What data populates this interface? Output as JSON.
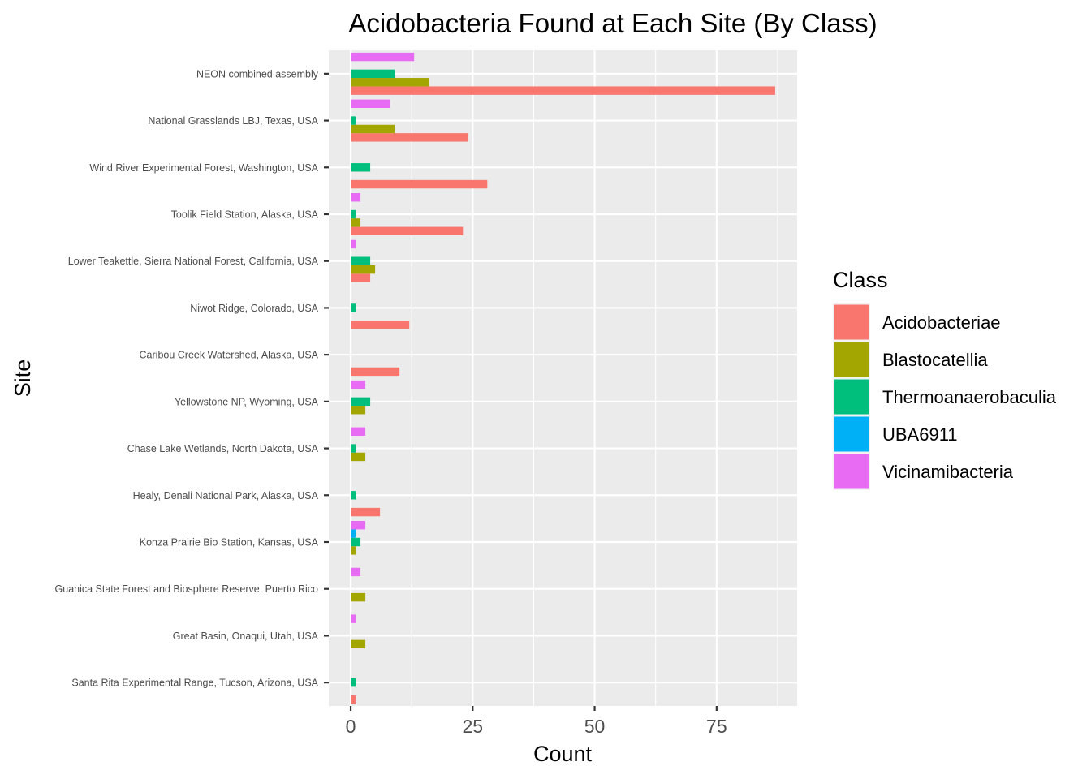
{
  "chart_data": {
    "type": "bar",
    "orientation": "horizontal",
    "title": "Acidobacteria Found at Each Site (By Class)",
    "xlabel": "Count",
    "ylabel": "Site",
    "xlim": [
      -4.5,
      91.5
    ],
    "xticks": [
      0,
      25,
      50,
      75
    ],
    "grid": true,
    "legend_position": "right",
    "legend_title": "Class",
    "categories": [
      "NEON combined assembly",
      "National Grasslands LBJ, Texas, USA",
      "Wind River Experimental Forest, Washington, USA",
      "Toolik Field Station, Alaska, USA",
      "Lower Teakettle, Sierra National Forest, California, USA",
      "Niwot Ridge, Colorado, USA",
      "Caribou Creek Watershed, Alaska, USA",
      "Yellowstone NP, Wyoming, USA",
      "Chase Lake Wetlands, North Dakota, USA",
      "Healy, Denali National Park, Alaska, USA",
      "Konza Prairie Bio Station, Kansas, USA",
      "Guanica State Forest and Biosphere Reserve, Puerto Rico",
      "Great Basin, Onaqui, Utah, USA",
      "Santa Rita Experimental Range, Tucson, Arizona, USA"
    ],
    "series": [
      {
        "name": "Acidobacteriae",
        "color": "#F8766D",
        "values": [
          87,
          24,
          28,
          23,
          4,
          12,
          10,
          0,
          0,
          6,
          0,
          0,
          0,
          1
        ]
      },
      {
        "name": "Blastocatellia",
        "color": "#A3A500",
        "values": [
          16,
          9,
          0,
          2,
          5,
          0,
          0,
          3,
          3,
          0,
          1,
          3,
          3,
          0
        ]
      },
      {
        "name": "Thermoanaerobaculia",
        "color": "#00BF7D",
        "values": [
          9,
          1,
          4,
          1,
          4,
          1,
          0,
          4,
          1,
          1,
          2,
          0,
          0,
          1
        ]
      },
      {
        "name": "UBA6911",
        "color": "#00B0F6",
        "values": [
          0,
          0,
          0,
          0,
          0,
          0,
          0,
          0,
          0,
          0,
          1,
          0,
          0,
          0
        ]
      },
      {
        "name": "Vicinamibacteria",
        "color": "#E76BF3",
        "values": [
          13,
          8,
          0,
          2,
          1,
          0,
          0,
          3,
          3,
          0,
          3,
          2,
          1,
          0
        ]
      }
    ]
  }
}
